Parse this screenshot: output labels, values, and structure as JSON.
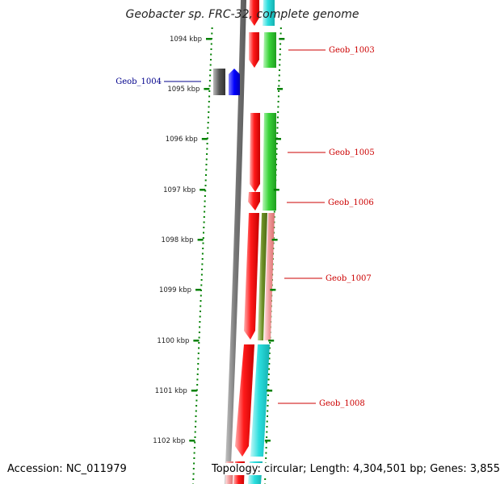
{
  "title": "Geobacter sp. FRC-32, complete genome",
  "footer": {
    "accession": "Accession: NC_011979",
    "summary": "Topology: circular; Length: 4,304,501 bp; Genes: 3,855"
  },
  "ticks": [
    "1094 kbp",
    "1095 kbp",
    "1096 kbp",
    "1097 kbp",
    "1098 kbp",
    "1099 kbp",
    "1100 kbp",
    "1101 kbp",
    "1102 kbp"
  ],
  "genes": [
    {
      "name": "Geob_1003",
      "color": "#cc0000"
    },
    {
      "name": "Geob_1004",
      "color": "#00008b"
    },
    {
      "name": "Geob_1005",
      "color": "#cc0000"
    },
    {
      "name": "Geob_1006",
      "color": "#cc0000"
    },
    {
      "name": "Geob_1007",
      "color": "#cc0000"
    },
    {
      "name": "Geob_1008",
      "color": "#cc0000"
    }
  ],
  "colors": {
    "backbone": "#7a7a7a",
    "cds_red": "#ee0000",
    "cds_green": "#33cc33",
    "cds_cyan": "#22dddd",
    "cds_pink": "#ee8888",
    "cds_olive": "#6b8e23",
    "cds_blue": "#0000ff",
    "cds_grey": "#555555",
    "tick_dots": "#008000"
  }
}
